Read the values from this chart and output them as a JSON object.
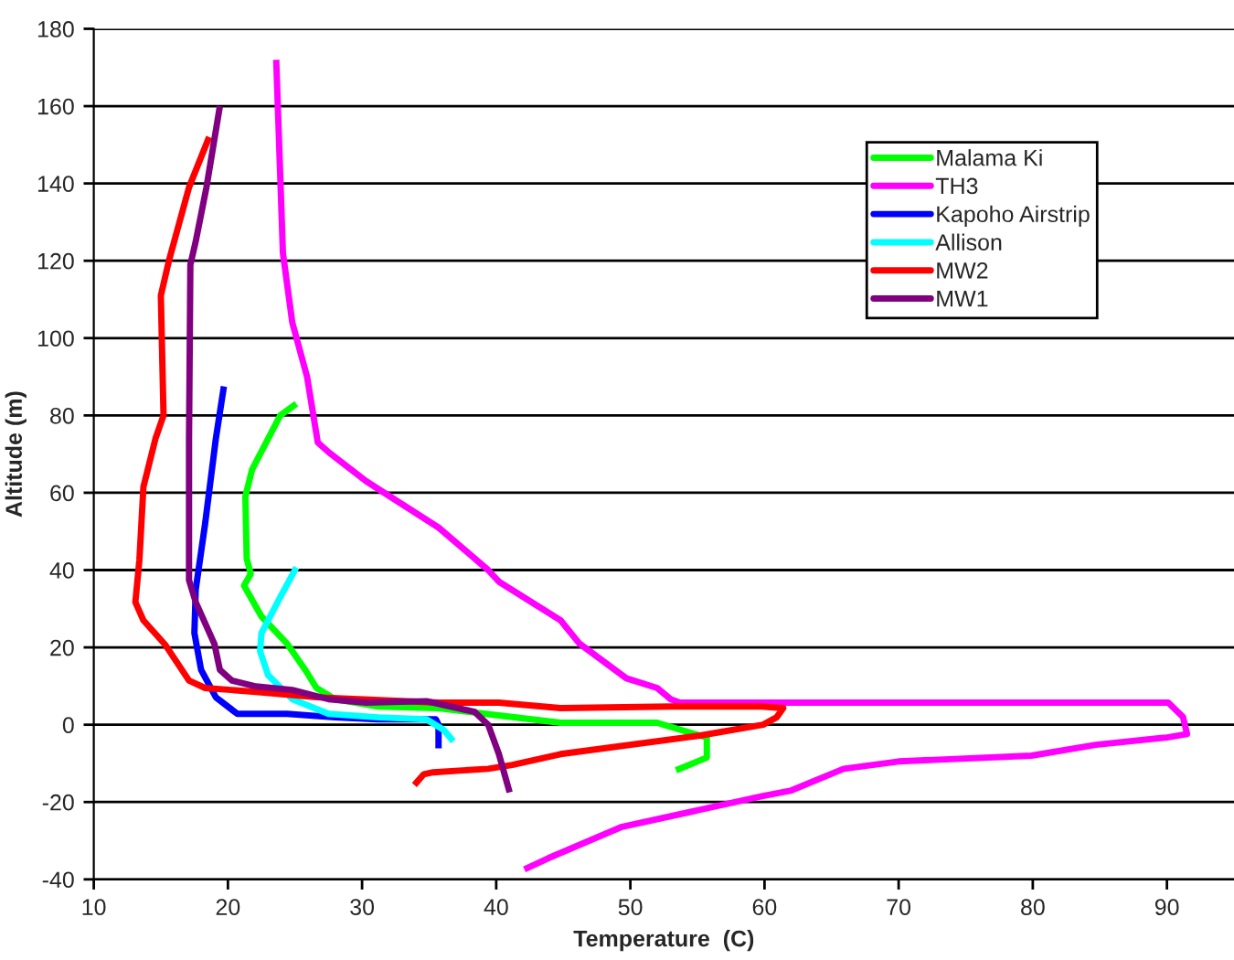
{
  "chart_data": {
    "type": "line",
    "xlabel": "Temperature  (C)",
    "ylabel": "Altitude (m)",
    "xlim": [
      10,
      95
    ],
    "xticks": [
      10,
      20,
      30,
      40,
      50,
      60,
      70,
      80,
      90
    ],
    "ylim": [
      -40,
      180
    ],
    "yticks": [
      -40,
      -20,
      0,
      20,
      40,
      60,
      80,
      100,
      120,
      140,
      160,
      180
    ],
    "grid": "y",
    "legend": "top right",
    "marker": "none",
    "line_style": "solid",
    "series": [
      {
        "name": "Malama Ki",
        "color": "#00ff00",
        "x": [
          25.1,
          23.9,
          21.8,
          21.3,
          21.4,
          21.7,
          21.2,
          22.5,
          24.4,
          25.8,
          26.6,
          28,
          31.2,
          35.7,
          40.2,
          44.8,
          49.7,
          52,
          54.8,
          55.7,
          55.7,
          53.4
        ],
        "values": [
          83,
          80,
          66,
          59,
          43,
          39,
          36,
          28,
          21,
          14,
          9.5,
          6.6,
          4.7,
          4.3,
          2.4,
          0.5,
          0.5,
          0.5,
          -2.4,
          -3.3,
          -8.5,
          -11.8
        ]
      },
      {
        "name": "TH3",
        "color": "#ff00ff",
        "x": [
          23.6,
          23.9,
          24.1,
          24.8,
          25.9,
          26.7,
          27.5,
          30.3,
          31.2,
          35.7,
          39.4,
          40.2,
          44.8,
          46.2,
          49.7,
          52,
          53,
          53.7,
          90.1,
          91.2,
          91.5,
          90,
          84.7,
          79.9,
          70,
          65.9,
          62,
          59.8,
          49.3,
          43.9,
          42.1
        ],
        "values": [
          172,
          142,
          122,
          104,
          90,
          73,
          70.5,
          63,
          61,
          51,
          40,
          37,
          27,
          21,
          12,
          9.5,
          6.6,
          5.7,
          5.7,
          2,
          -2.4,
          -3.3,
          -5.2,
          -8,
          -9.5,
          -11.4,
          -17,
          -18.5,
          -26.5,
          -34.5,
          -37.4
        ]
      },
      {
        "name": "Kapoho Airstrip",
        "color": "#0000ff",
        "x": [
          19.7,
          19.1,
          18.3,
          17.6,
          17.5,
          18,
          19.1,
          20.7,
          24.4,
          28,
          31.2,
          35.5,
          35.7,
          35.7
        ],
        "values": [
          87.5,
          74,
          52,
          35,
          23.7,
          14.2,
          7.1,
          2.8,
          2.8,
          1.9,
          1.4,
          1.4,
          0,
          -6.1
        ]
      },
      {
        "name": "Allison",
        "color": "#00ffff",
        "x": [
          25.1,
          23.9,
          22.5,
          22.4,
          23,
          24.8,
          27.5,
          31.2,
          34.8,
          36.1,
          36.8
        ],
        "values": [
          40.7,
          33,
          23.7,
          19,
          12.8,
          6.6,
          2.8,
          1.9,
          1.4,
          -1.4,
          -4.3
        ]
      },
      {
        "name": "MW2",
        "color": "#ff0000",
        "x": [
          18.6,
          17.1,
          15.6,
          15,
          15.2,
          14.6,
          13.7,
          13.4,
          13.1,
          13.7,
          15.3,
          17.1,
          18.3,
          22.1,
          26.6,
          35.7,
          40.2,
          44.8,
          53,
          59.8,
          61.4,
          60.9,
          59.9,
          55.2,
          44.8,
          41.2,
          39.4,
          35.3,
          34.6,
          33.9
        ],
        "values": [
          152,
          139,
          120,
          111,
          80,
          74,
          61.5,
          42.6,
          31.7,
          27,
          20.8,
          11.4,
          9.5,
          8.5,
          7.1,
          5.7,
          5.7,
          4.3,
          4.7,
          4.7,
          4.3,
          1.9,
          0,
          -2.8,
          -7.6,
          -10.4,
          -11.4,
          -12.3,
          -12.8,
          -15.6
        ]
      },
      {
        "name": "MW1",
        "color": "#800080",
        "x": [
          19.4,
          18.4,
          17.6,
          17.2,
          17.1,
          17.1,
          17.6,
          19,
          19.4,
          20.3,
          22.1,
          24.8,
          27.5,
          30.3,
          34.8,
          38.4,
          39.4,
          40.2,
          41
        ],
        "values": [
          160,
          139,
          125,
          119,
          74,
          37.4,
          31.7,
          20.8,
          14.2,
          11.4,
          9.9,
          9,
          6.6,
          5.7,
          6.1,
          3.3,
          0,
          -7.6,
          -17.5
        ]
      }
    ]
  }
}
